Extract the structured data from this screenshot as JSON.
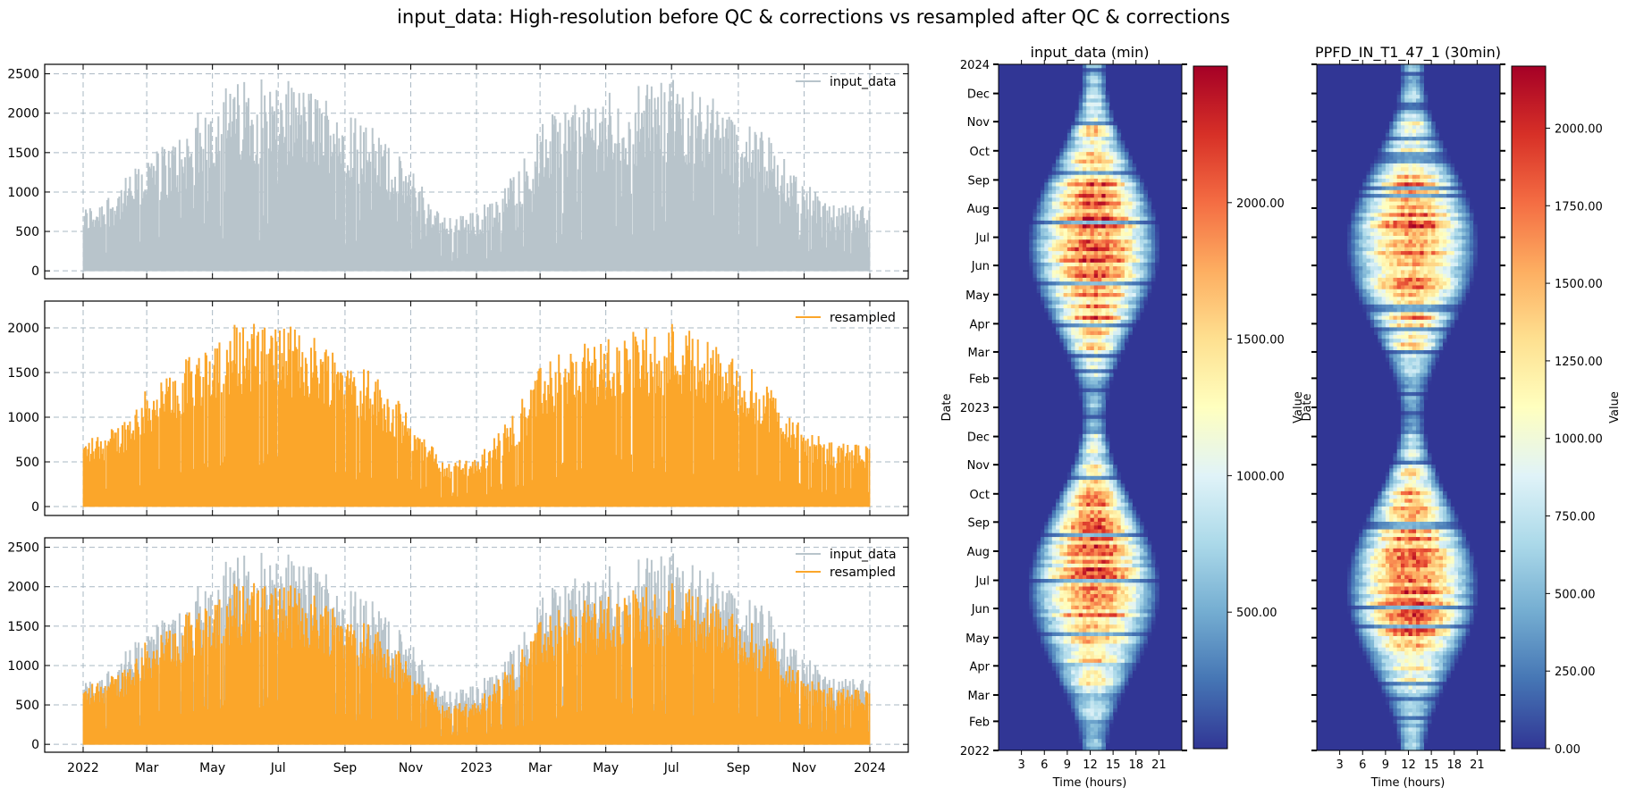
{
  "figure": {
    "suptitle": "input_data: High-resolution before QC & corrections vs resampled after QC & corrections"
  },
  "colors": {
    "input_data": "#b8c4cb",
    "resampled": "#fba62a",
    "grid": "#a9b8c3",
    "heatmap_low": "#313695",
    "heatmap_high": "#a50026"
  },
  "chart_data": [
    {
      "id": "ts_input",
      "type": "area",
      "series": [
        {
          "name": "input_data",
          "envelope_by_month": [
            {
              "x": "2022-01",
              "y": 800
            },
            {
              "x": "2022-02",
              "y": 1050
            },
            {
              "x": "2022-03",
              "y": 1500
            },
            {
              "x": "2022-04",
              "y": 1750
            },
            {
              "x": "2022-05",
              "y": 2300
            },
            {
              "x": "2022-06",
              "y": 2450
            },
            {
              "x": "2022-07",
              "y": 2450
            },
            {
              "x": "2022-08",
              "y": 2300
            },
            {
              "x": "2022-09",
              "y": 2150
            },
            {
              "x": "2022-10",
              "y": 1750
            },
            {
              "x": "2022-11",
              "y": 1300
            },
            {
              "x": "2022-12",
              "y": 700
            },
            {
              "x": "2023-01",
              "y": 750
            },
            {
              "x": "2023-02",
              "y": 1200
            },
            {
              "x": "2023-03",
              "y": 1900
            },
            {
              "x": "2023-04",
              "y": 2200
            },
            {
              "x": "2023-05",
              "y": 2300
            },
            {
              "x": "2023-06",
              "y": 2400
            },
            {
              "x": "2023-07",
              "y": 2450
            },
            {
              "x": "2023-08",
              "y": 2350
            },
            {
              "x": "2023-09",
              "y": 1900
            },
            {
              "x": "2023-10",
              "y": 1700
            },
            {
              "x": "2023-11",
              "y": 1100
            },
            {
              "x": "2023-12",
              "y": 850
            }
          ]
        }
      ],
      "ylim": [
        -100,
        2620
      ],
      "yticks": [
        0,
        500,
        1000,
        1500,
        2000,
        2500
      ],
      "legend": "top-right",
      "grid": true
    },
    {
      "id": "ts_resampled",
      "type": "area",
      "series": [
        {
          "name": "resampled",
          "envelope_by_month": [
            {
              "x": "2022-01",
              "y": 750
            },
            {
              "x": "2022-02",
              "y": 900
            },
            {
              "x": "2022-03",
              "y": 1350
            },
            {
              "x": "2022-04",
              "y": 1600
            },
            {
              "x": "2022-05",
              "y": 2000
            },
            {
              "x": "2022-06",
              "y": 2100
            },
            {
              "x": "2022-07",
              "y": 2050
            },
            {
              "x": "2022-08",
              "y": 1950
            },
            {
              "x": "2022-09",
              "y": 1750
            },
            {
              "x": "2022-10",
              "y": 1450
            },
            {
              "x": "2022-11",
              "y": 1000
            },
            {
              "x": "2022-12",
              "y": 500
            },
            {
              "x": "2023-01",
              "y": 550
            },
            {
              "x": "2023-02",
              "y": 1000
            },
            {
              "x": "2023-03",
              "y": 1600
            },
            {
              "x": "2023-04",
              "y": 1800
            },
            {
              "x": "2023-05",
              "y": 1900
            },
            {
              "x": "2023-06",
              "y": 2000
            },
            {
              "x": "2023-07",
              "y": 2100
            },
            {
              "x": "2023-08",
              "y": 1900
            },
            {
              "x": "2023-09",
              "y": 1650
            },
            {
              "x": "2023-10",
              "y": 1350
            },
            {
              "x": "2023-11",
              "y": 850
            },
            {
              "x": "2023-12",
              "y": 700
            }
          ]
        }
      ],
      "ylim": [
        -100,
        2300
      ],
      "yticks": [
        0,
        500,
        1000,
        1500,
        2000
      ],
      "legend": "top-right",
      "grid": true
    },
    {
      "id": "ts_overlay",
      "type": "area",
      "series": [
        {
          "name": "input_data",
          "ref": "ts_input"
        },
        {
          "name": "resampled",
          "ref": "ts_resampled"
        }
      ],
      "ylim": [
        -100,
        2620
      ],
      "yticks": [
        0,
        500,
        1000,
        1500,
        2000,
        2500
      ],
      "xtick_labels": [
        "2022",
        "Mar",
        "May",
        "Jul",
        "Sep",
        "Nov",
        "2023",
        "Mar",
        "May",
        "Jul",
        "Sep",
        "Nov",
        "2024"
      ],
      "legend": "top-right",
      "grid": true
    },
    {
      "id": "heat_input",
      "type": "heatmap",
      "title": "input_data (min)",
      "xlabel": "Time (hours)",
      "ylabel": "Date",
      "xticks": [
        3,
        6,
        9,
        12,
        15,
        18,
        21
      ],
      "xlim": [
        0,
        24
      ],
      "ytick_labels": [
        "2024",
        "Dec",
        "Nov",
        "Oct",
        "Sep",
        "Aug",
        "Jul",
        "Jun",
        "May",
        "Apr",
        "Mar",
        "Feb",
        "2023",
        "Dec",
        "Nov",
        "Oct",
        "Sep",
        "Aug",
        "Jul",
        "Jun",
        "May",
        "Apr",
        "Mar",
        "Feb",
        "2022"
      ],
      "colorbar": {
        "label": "",
        "vmin": 0,
        "vmax": 2500,
        "ticks": [
          500,
          1000,
          1500,
          2000
        ],
        "tick_labels": [
          "500.00",
          "1000.00",
          "1500.00",
          "2000.00"
        ]
      },
      "colormap": "RdYlBu_r"
    },
    {
      "id": "heat_resampled",
      "type": "heatmap",
      "title": "PPFD_IN_T1_47_1 (30min)",
      "xlabel": "Time (hours)",
      "ylabel": "Date",
      "xticks": [
        3,
        6,
        9,
        12,
        15,
        18,
        21
      ],
      "xlim": [
        0,
        24
      ],
      "colorbar": {
        "label": "Value",
        "vmin": 0,
        "vmax": 2200,
        "ticks": [
          0,
          250,
          500,
          750,
          1000,
          1250,
          1500,
          1750,
          2000
        ],
        "tick_labels": [
          "0.00",
          "250.00",
          "500.00",
          "750.00",
          "1000.00",
          "1250.00",
          "1500.00",
          "1750.00",
          "2000.00"
        ]
      },
      "colormap": "RdYlBu_r"
    }
  ],
  "heatmap_overlap_labels": {
    "value": "Value",
    "date": "Date"
  }
}
